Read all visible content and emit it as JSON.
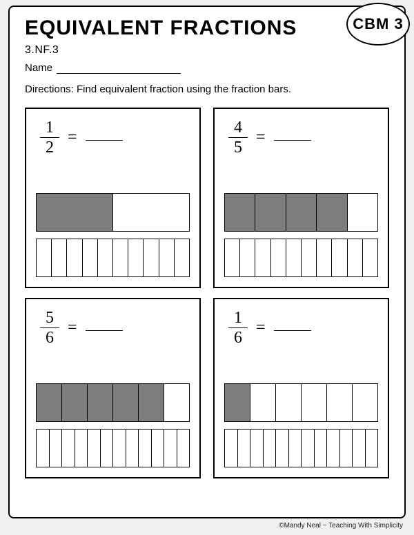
{
  "title": "EQUIVALENT FRACTIONS",
  "badge": "CBM 3",
  "standard": "3.NF.3",
  "name_label": "Name",
  "directions": "Directions:  Find equivalent fraction using the fraction bars.",
  "footer": "©Mandy Neal ~ Teaching With Simplicity",
  "colors": {
    "fill": "#7d7d7d",
    "border": "#000000",
    "background": "#ffffff"
  },
  "problems": [
    {
      "numerator": "1",
      "denominator": "2",
      "top_bar": {
        "segments": 2,
        "filled": 1
      },
      "bottom_bar": {
        "segments": 10,
        "filled": 0
      }
    },
    {
      "numerator": "4",
      "denominator": "5",
      "top_bar": {
        "segments": 5,
        "filled": 4
      },
      "bottom_bar": {
        "segments": 10,
        "filled": 0
      }
    },
    {
      "numerator": "5",
      "denominator": "6",
      "top_bar": {
        "segments": 6,
        "filled": 5
      },
      "bottom_bar": {
        "segments": 12,
        "filled": 0
      }
    },
    {
      "numerator": "1",
      "denominator": "6",
      "top_bar": {
        "segments": 6,
        "filled": 1
      },
      "bottom_bar": {
        "segments": 12,
        "filled": 0
      }
    }
  ]
}
